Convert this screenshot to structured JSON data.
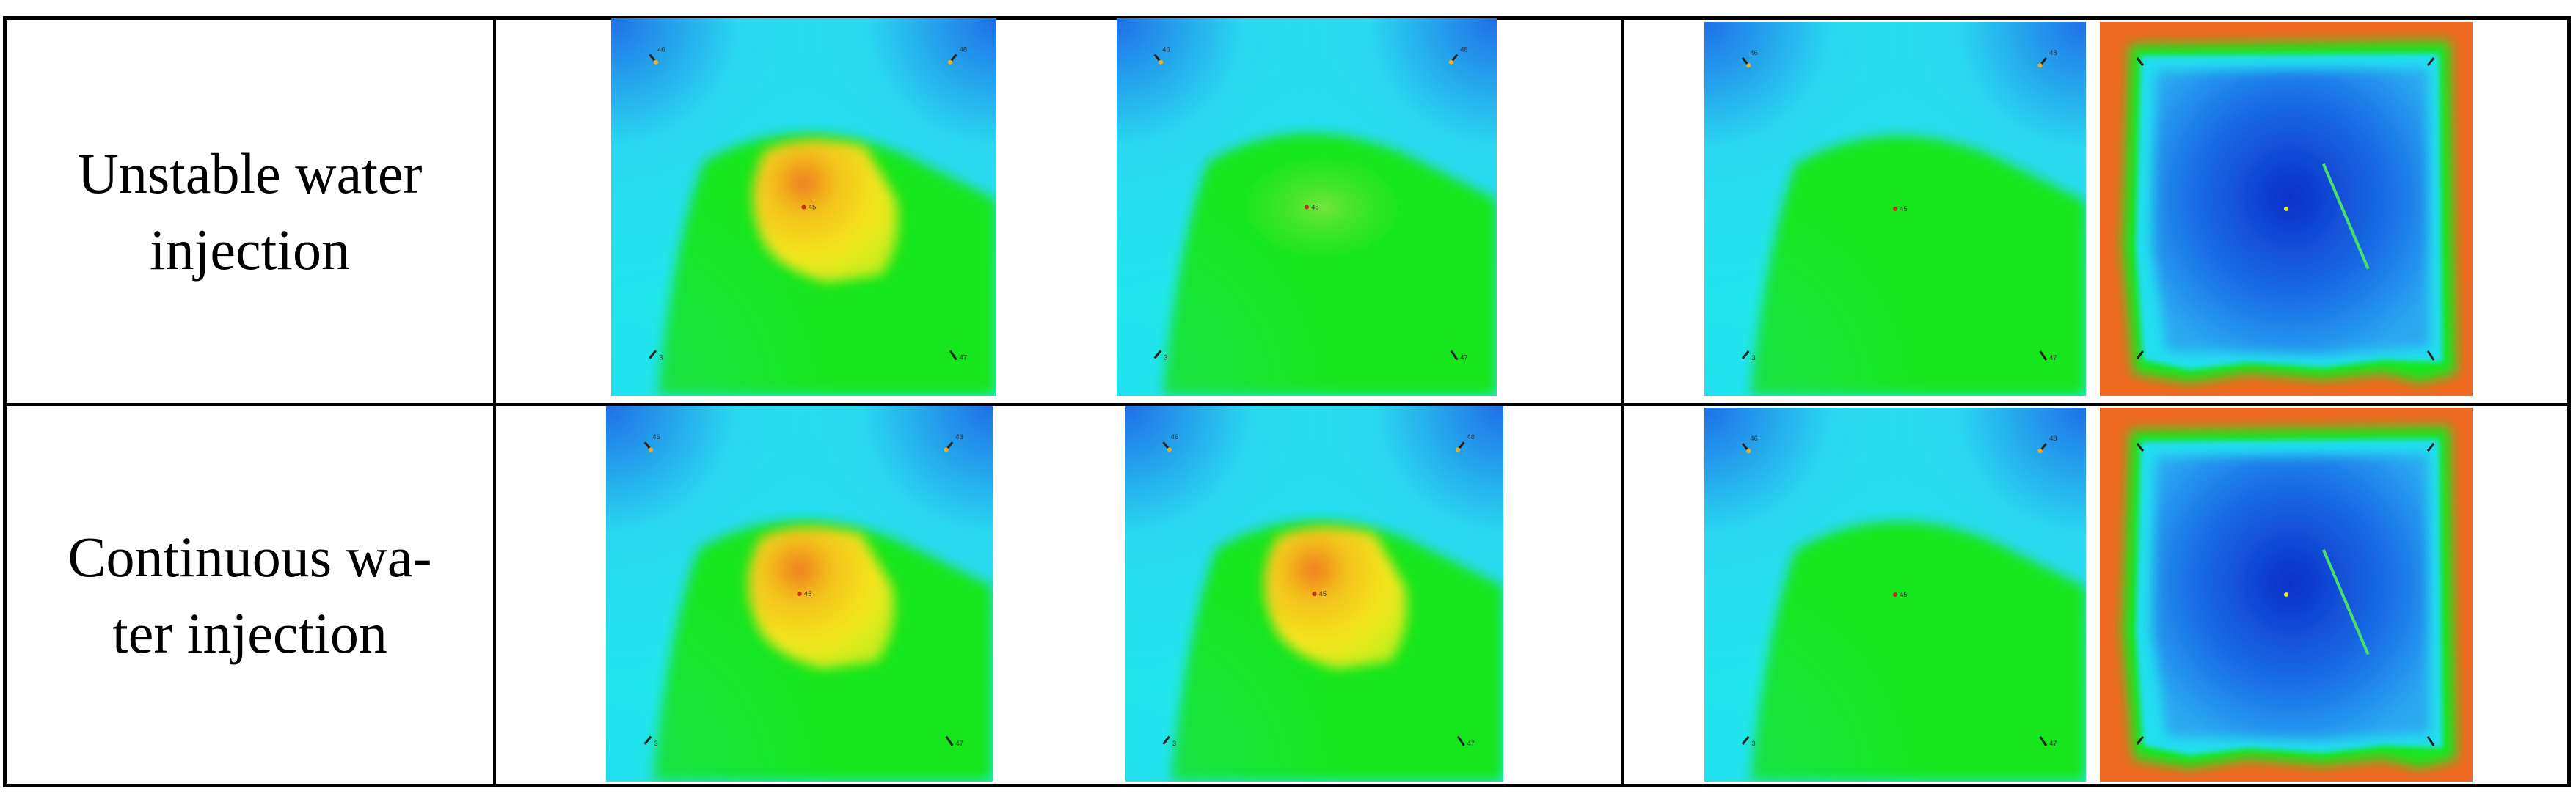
{
  "rows": [
    {
      "label": "Unstable water\ninjection"
    },
    {
      "label": "Continuous wa-\nter injection"
    }
  ],
  "well_labels": {
    "top_left": "46",
    "top_right": "48",
    "center": "45",
    "bottom_left": "3",
    "bottom_right": "47"
  },
  "colors": {
    "blue": "#1f6fe8",
    "cyan": "#22e8ee",
    "green": "#16e61c",
    "yellow": "#f3e61a",
    "orange": "#f07a22",
    "deep_blue": "#0a2fc8"
  }
}
